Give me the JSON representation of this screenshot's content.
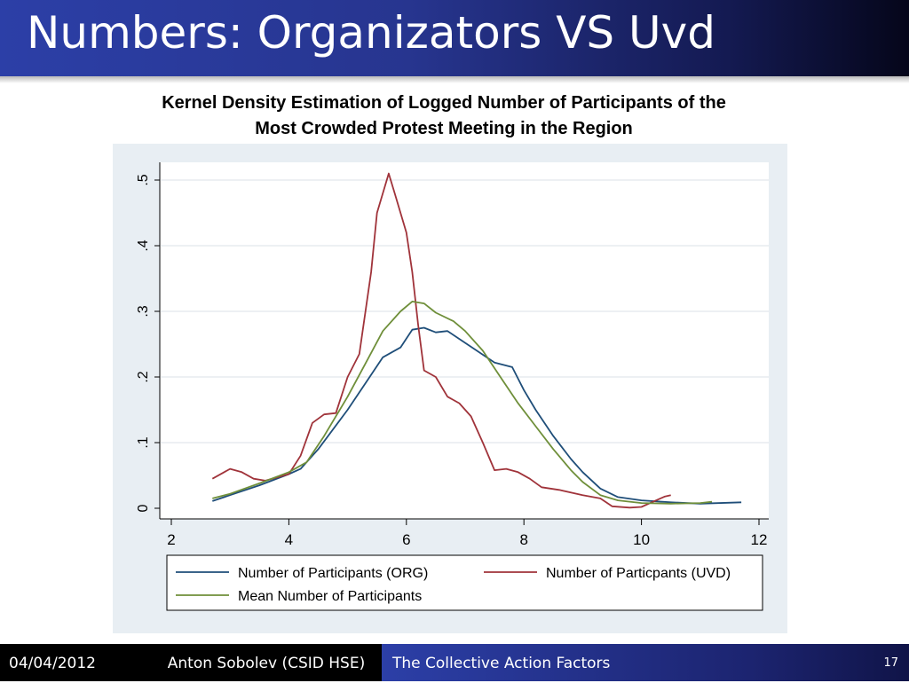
{
  "slide": {
    "title": "Numbers: Organizators VS Uvd",
    "footer": {
      "date": "04/04/2012",
      "author": "Anton Sobolev (CSID HSE)",
      "topic": "The Collective Action Factors",
      "page": "17"
    }
  },
  "chart_data": {
    "type": "line",
    "title_lines": [
      "Kernel Density  Estimation of Logged Number of  Participants of the",
      "Most Crowded Protest Meeting in the Region"
    ],
    "xlabel": "",
    "ylabel": "",
    "xlim": [
      2,
      12
    ],
    "ylim": [
      0,
      0.5
    ],
    "x_ticks": [
      2,
      4,
      6,
      8,
      10,
      12
    ],
    "x_tick_labels": [
      "2",
      "4",
      "6",
      "8",
      "10",
      "12"
    ],
    "y_ticks": [
      0,
      0.1,
      0.2,
      0.3,
      0.4,
      0.5
    ],
    "y_tick_labels": [
      "0",
      ".1",
      ".2",
      ".3",
      ".4",
      ".5"
    ],
    "grid": true,
    "legend_position": "bottom",
    "series": [
      {
        "name": "Number of Participants (ORG)",
        "color": "#1f4e79",
        "points": [
          [
            2.7,
            0.011
          ],
          [
            3.0,
            0.02
          ],
          [
            3.5,
            0.035
          ],
          [
            4.0,
            0.052
          ],
          [
            4.2,
            0.06
          ],
          [
            4.5,
            0.09
          ],
          [
            5.0,
            0.15
          ],
          [
            5.3,
            0.19
          ],
          [
            5.6,
            0.23
          ],
          [
            5.9,
            0.245
          ],
          [
            6.1,
            0.272
          ],
          [
            6.3,
            0.275
          ],
          [
            6.5,
            0.268
          ],
          [
            6.7,
            0.27
          ],
          [
            6.9,
            0.258
          ],
          [
            7.2,
            0.24
          ],
          [
            7.5,
            0.222
          ],
          [
            7.8,
            0.215
          ],
          [
            8.0,
            0.18
          ],
          [
            8.2,
            0.15
          ],
          [
            8.5,
            0.11
          ],
          [
            8.8,
            0.075
          ],
          [
            9.0,
            0.055
          ],
          [
            9.3,
            0.03
          ],
          [
            9.6,
            0.017
          ],
          [
            10.0,
            0.012
          ],
          [
            10.5,
            0.009
          ],
          [
            11.0,
            0.007
          ],
          [
            11.7,
            0.009
          ]
        ]
      },
      {
        "name": "Number of Particpants (UVD)",
        "color": "#a0333a",
        "points": [
          [
            2.7,
            0.045
          ],
          [
            3.0,
            0.06
          ],
          [
            3.2,
            0.055
          ],
          [
            3.4,
            0.045
          ],
          [
            3.6,
            0.042
          ],
          [
            4.0,
            0.052
          ],
          [
            4.2,
            0.08
          ],
          [
            4.4,
            0.13
          ],
          [
            4.6,
            0.143
          ],
          [
            4.8,
            0.145
          ],
          [
            5.0,
            0.2
          ],
          [
            5.2,
            0.235
          ],
          [
            5.4,
            0.36
          ],
          [
            5.5,
            0.45
          ],
          [
            5.7,
            0.51
          ],
          [
            5.8,
            0.48
          ],
          [
            5.9,
            0.45
          ],
          [
            6.0,
            0.42
          ],
          [
            6.1,
            0.36
          ],
          [
            6.2,
            0.28
          ],
          [
            6.3,
            0.21
          ],
          [
            6.5,
            0.2
          ],
          [
            6.7,
            0.17
          ],
          [
            6.9,
            0.16
          ],
          [
            7.1,
            0.14
          ],
          [
            7.3,
            0.1
          ],
          [
            7.5,
            0.058
          ],
          [
            7.7,
            0.06
          ],
          [
            7.9,
            0.055
          ],
          [
            8.1,
            0.045
          ],
          [
            8.3,
            0.032
          ],
          [
            8.6,
            0.028
          ],
          [
            9.0,
            0.02
          ],
          [
            9.3,
            0.015
          ],
          [
            9.5,
            0.003
          ],
          [
            9.8,
            0.001
          ],
          [
            10.0,
            0.002
          ],
          [
            10.2,
            0.01
          ],
          [
            10.4,
            0.018
          ],
          [
            10.5,
            0.02
          ]
        ]
      },
      {
        "name": "Mean Number of Participants",
        "color": "#6f8f3a",
        "points": [
          [
            2.7,
            0.015
          ],
          [
            3.0,
            0.022
          ],
          [
            3.5,
            0.038
          ],
          [
            4.0,
            0.055
          ],
          [
            4.3,
            0.07
          ],
          [
            4.6,
            0.11
          ],
          [
            5.0,
            0.17
          ],
          [
            5.3,
            0.22
          ],
          [
            5.6,
            0.27
          ],
          [
            5.9,
            0.3
          ],
          [
            6.1,
            0.315
          ],
          [
            6.3,
            0.312
          ],
          [
            6.5,
            0.298
          ],
          [
            6.8,
            0.285
          ],
          [
            7.0,
            0.27
          ],
          [
            7.3,
            0.24
          ],
          [
            7.6,
            0.2
          ],
          [
            7.9,
            0.16
          ],
          [
            8.2,
            0.125
          ],
          [
            8.5,
            0.09
          ],
          [
            8.8,
            0.058
          ],
          [
            9.0,
            0.04
          ],
          [
            9.3,
            0.02
          ],
          [
            9.6,
            0.012
          ],
          [
            10.0,
            0.008
          ],
          [
            10.5,
            0.007
          ],
          [
            11.0,
            0.008
          ],
          [
            11.2,
            0.01
          ]
        ]
      }
    ]
  }
}
